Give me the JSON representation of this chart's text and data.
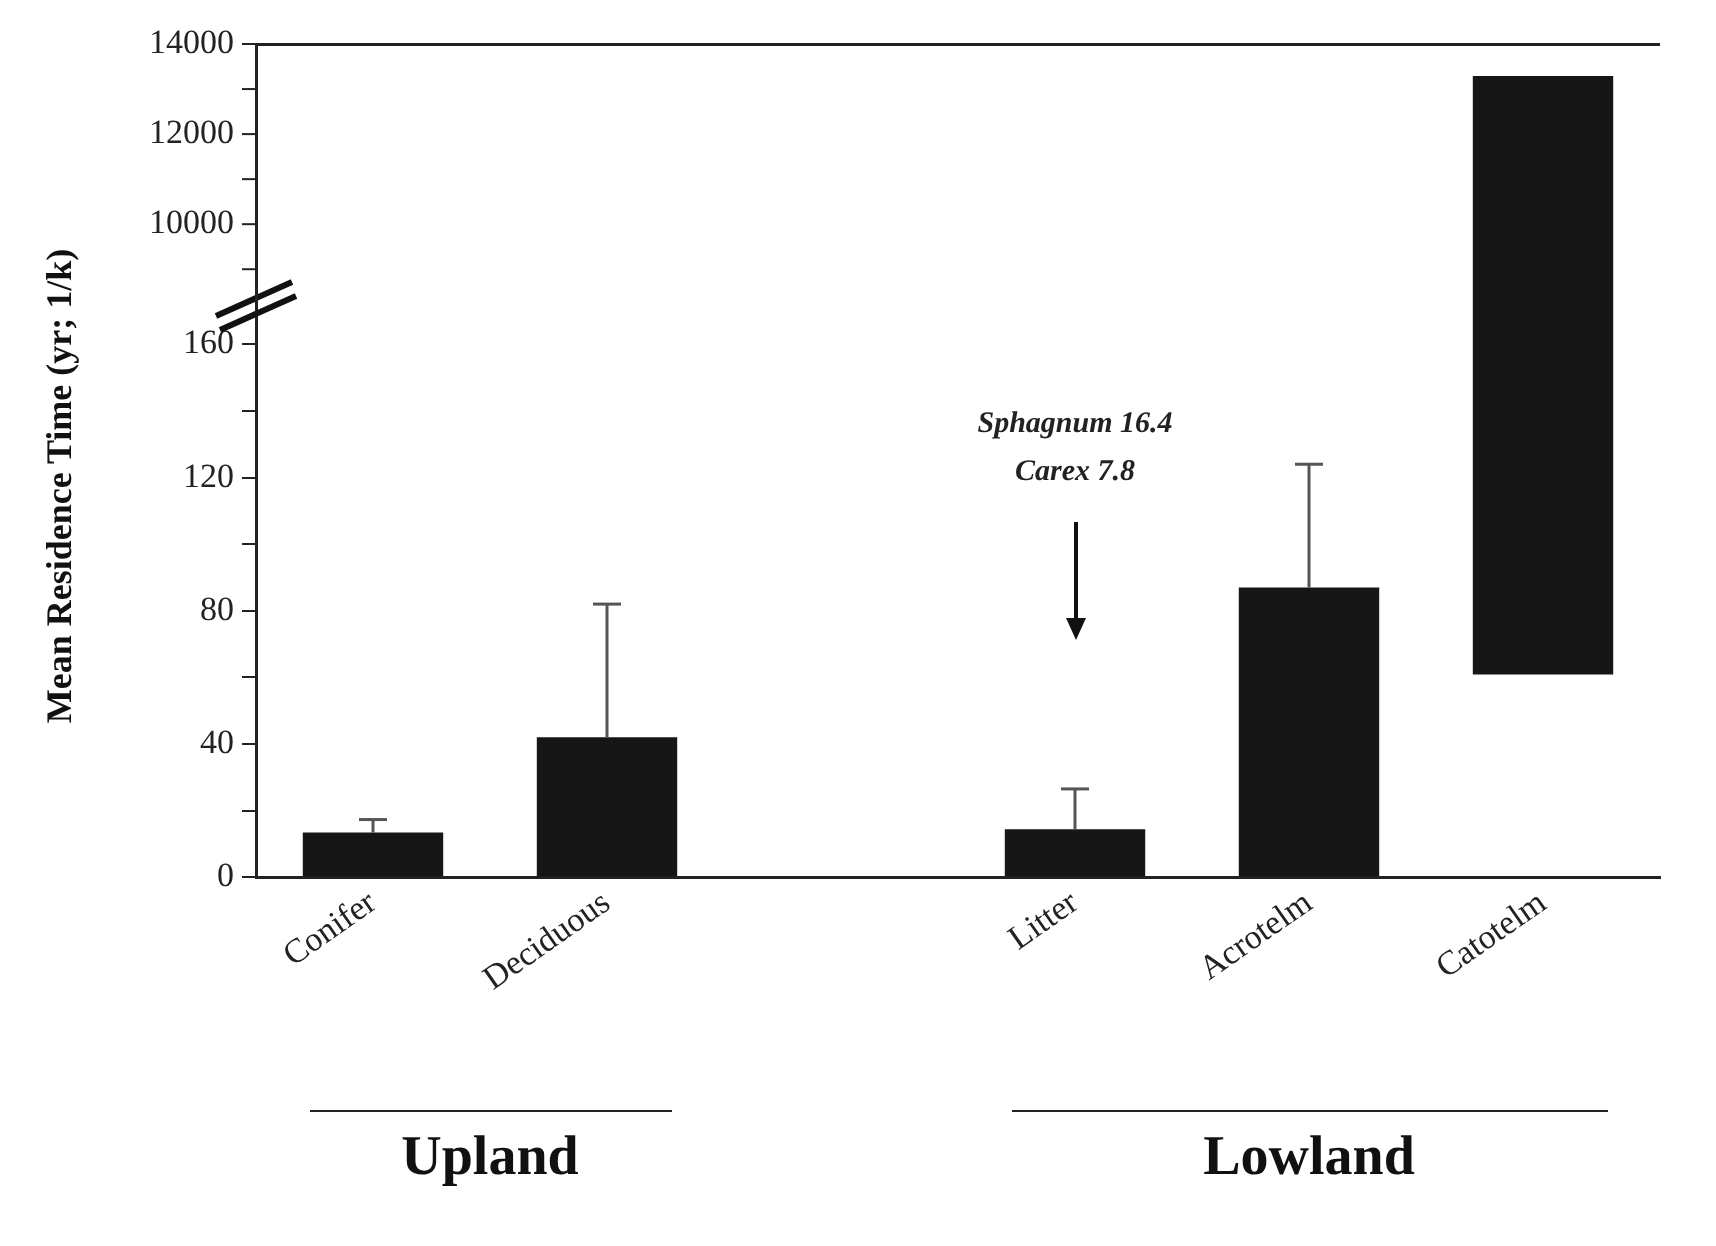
{
  "chart_data": [
    {
      "type": "bar",
      "categories": [
        null,
        null,
        null,
        null,
        null,
        null
      ],
      "series": [
        {
          "color": "#161616",
          "values": [
            null,
            null,
            null,
            null,
            null,
            13300
          ]
        }
      ],
      "ylim": [
        8200,
        14000
      ],
      "yticks": [
        {
          "value": 9000,
          "label": null
        },
        10000,
        {
          "value": 11000,
          "label": null
        },
        12000,
        {
          "value": 13000,
          "label": null
        },
        14000
      ],
      "tick_labels": "y",
      "grid": false,
      "legend": false
    },
    {
      "type": "bar",
      "ylabel": "Mean Residence Time (yr; 1/k)",
      "categories": [
        "Conifer",
        "Deciduous",
        null,
        "Litter",
        "Acrotelm",
        "Catotelm"
      ],
      "series": [
        {
          "color": "#161616",
          "values": [
            13.4,
            42,
            null,
            14.4,
            87,
            null
          ],
          "errors": [
            [
              13.4,
              17.3
            ],
            [
              42,
              82
            ],
            null,
            [
              14.4,
              26.5
            ],
            [
              87,
              124
            ],
            null
          ]
        }
      ],
      "ylim": [
        0,
        172
      ],
      "yticks": [
        0,
        {
          "value": 20,
          "label": null
        },
        40,
        {
          "value": 60,
          "label": null
        },
        80,
        {
          "value": 100,
          "label": null
        },
        120,
        {
          "value": 140,
          "label": null
        },
        160
      ],
      "annotations": [
        "Sphagnum 16.4",
        "Carex 7.8",
        "Upland",
        "Lowland"
      ],
      "grid": false,
      "legend": false
    }
  ]
}
